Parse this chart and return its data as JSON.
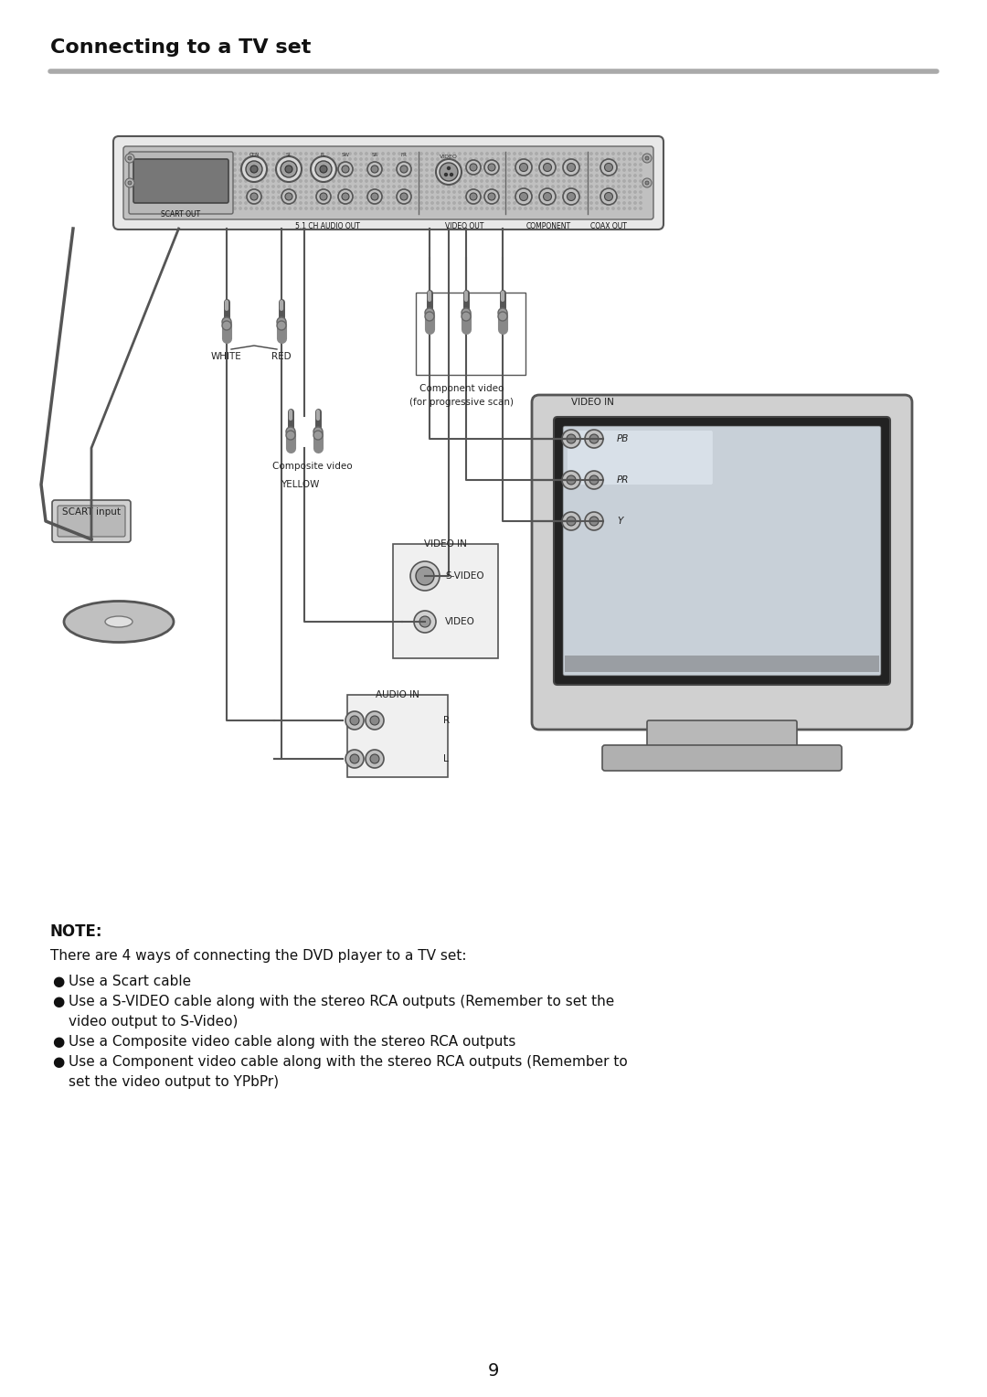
{
  "title": "Connecting to a TV set",
  "title_fontsize": 16,
  "bg_color": "#ffffff",
  "note_title": "NOTE:",
  "note_intro": "There are 4 ways of connecting the DVD player to a TV set:",
  "bullets": [
    "Use a Scart cable",
    "Use a S-VIDEO cable along with the stereo RCA outputs (Remember to set the\n   video output to S-Video)",
    "Use a Composite video cable along with the stereo RCA outputs",
    "Use a Component video cable along with the stereo RCA outputs (Remember to\n   set the video output to YPbPr)"
  ],
  "page_number": "9",
  "line_color": "#888888",
  "dark_gray": "#444444",
  "mid_gray": "#888888",
  "light_gray": "#cccccc",
  "panel_gray": "#d0d0d0"
}
